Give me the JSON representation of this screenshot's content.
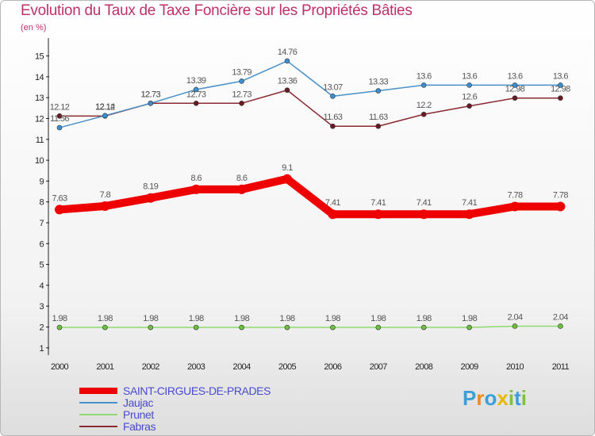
{
  "title": "Evolution du Taux de Taxe Foncière sur les Propriétés Bâties",
  "unit_label": "(en %)",
  "logo": {
    "letters": [
      "P",
      "r",
      "o",
      "x",
      "i",
      "t",
      "i"
    ],
    "colors": [
      "#3aa0d8",
      "#f08a1c",
      "#3aa0d8",
      "#e8b800",
      "#7cc242",
      "#3aa0d8",
      "#7cc242"
    ]
  },
  "chart_data": {
    "type": "line",
    "title": "Evolution du Taux de Taxe Foncière sur les Propriétés Bâties",
    "ylabel": "(en %)",
    "xlabel": "",
    "ylim": [
      1,
      15
    ],
    "yticks": [
      1,
      2,
      3,
      4,
      5,
      6,
      7,
      8,
      9,
      10,
      11,
      12,
      13,
      14,
      15
    ],
    "grid": false,
    "legend_position": "bottom-left",
    "categories": [
      "2000",
      "2001",
      "2002",
      "2003",
      "2004",
      "2005",
      "2006",
      "2007",
      "2008",
      "2009",
      "2010",
      "2011"
    ],
    "series": [
      {
        "name": "SAINT-CIRGUES-DE-PRADES",
        "color": "#ee0000",
        "emphasis": true,
        "values": [
          7.63,
          7.8,
          8.19,
          8.6,
          8.6,
          9.1,
          7.41,
          7.41,
          7.41,
          7.41,
          7.78,
          7.78
        ],
        "labels": [
          "7.63",
          "7.8",
          "8.19",
          "8.6",
          "8.6",
          "9.1",
          "7.41",
          "7.41",
          "7.41",
          "7.41",
          "7.78",
          "7.78"
        ]
      },
      {
        "name": "Jaujac",
        "color": "#4a90c8",
        "marker": "#3a8fd0",
        "values": [
          11.56,
          12.14,
          12.73,
          13.39,
          13.79,
          14.76,
          13.07,
          13.33,
          13.6,
          13.6,
          13.6,
          13.6
        ],
        "labels": [
          "11.56",
          "12.14",
          "12.73",
          "13.39",
          "13.79",
          "14.76",
          "13.07",
          "13.33",
          "13.6",
          "13.6",
          "13.6",
          "13.6"
        ]
      },
      {
        "name": "Prunet",
        "color": "#90d870",
        "marker": "#6cc23c",
        "values": [
          1.98,
          1.98,
          1.98,
          1.98,
          1.98,
          1.98,
          1.98,
          1.98,
          1.98,
          1.98,
          2.04,
          2.04
        ],
        "labels": [
          "1.98",
          "1.98",
          "1.98",
          "1.98",
          "1.98",
          "1.98",
          "1.98",
          "1.98",
          "1.98",
          "1.98",
          "2.04",
          "2.04"
        ]
      },
      {
        "name": "Fabras",
        "color": "#8a2a32",
        "marker": "#6a1a22",
        "values": [
          12.12,
          12.12,
          12.73,
          12.73,
          12.73,
          13.36,
          11.63,
          11.63,
          12.2,
          12.6,
          12.98,
          12.98
        ],
        "labels": [
          "12.12",
          "12.12",
          "12.73",
          "12.73",
          "12.73",
          "13.36",
          "11.63",
          "11.63",
          "12.2",
          "12.6",
          "12.98",
          "12.98"
        ]
      }
    ]
  }
}
